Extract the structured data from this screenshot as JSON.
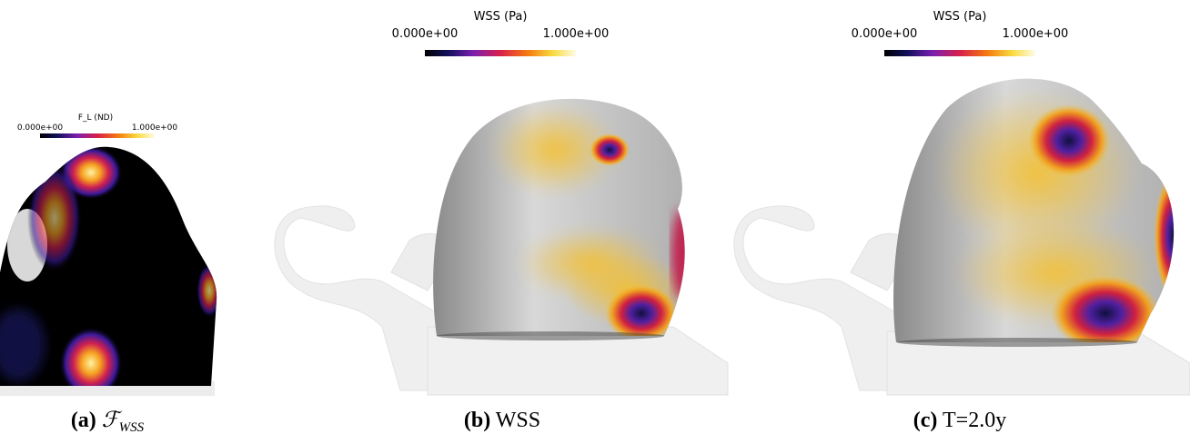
{
  "panels": [
    {
      "colorbar": {
        "title": "F_L (ND)",
        "min_label": "0.000e+00",
        "max_label": "1.000e+00"
      },
      "caption": {
        "label": "(a)",
        "symbol": "ℱ",
        "subscript": "WSS"
      }
    },
    {
      "colorbar": {
        "title": "WSS (Pa)",
        "min_label": "0.000e+00",
        "max_label": "1.000e+00"
      },
      "caption": {
        "label": "(b)",
        "text": "WSS"
      }
    },
    {
      "colorbar": {
        "title": "WSS (Pa)",
        "min_label": "0.000e+00",
        "max_label": "1.000e+00"
      },
      "caption": {
        "label": "(c)",
        "text": "T=2.0y"
      }
    }
  ]
}
